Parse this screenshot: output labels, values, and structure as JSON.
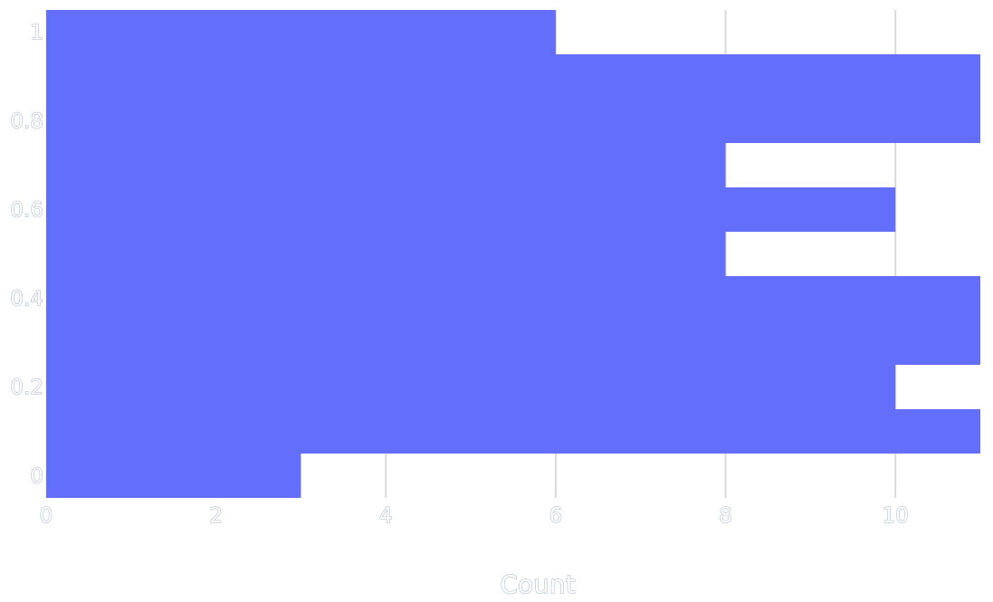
{
  "chart_data": {
    "type": "bar",
    "orientation": "horizontal",
    "title": "",
    "xlabel": "Count",
    "ylabel": "",
    "xlim": [
      0,
      11
    ],
    "ylim": [
      -0.05,
      1.05
    ],
    "grid": "vertical",
    "bar_color": "#636efa",
    "bin_width": 0.1,
    "bins": [
      {
        "y": 0.0,
        "count": 3
      },
      {
        "y": 0.1,
        "count": 11
      },
      {
        "y": 0.2,
        "count": 10
      },
      {
        "y": 0.3,
        "count": 11
      },
      {
        "y": 0.4,
        "count": 11
      },
      {
        "y": 0.5,
        "count": 8
      },
      {
        "y": 0.6,
        "count": 10
      },
      {
        "y": 0.7,
        "count": 8
      },
      {
        "y": 0.8,
        "count": 11
      },
      {
        "y": 0.9,
        "count": 11
      },
      {
        "y": 1.0,
        "count": 6
      }
    ],
    "x_ticks": [
      {
        "value": 0,
        "label": "0"
      },
      {
        "value": 2,
        "label": "2"
      },
      {
        "value": 4,
        "label": "4"
      },
      {
        "value": 6,
        "label": "6"
      },
      {
        "value": 8,
        "label": "8"
      },
      {
        "value": 10,
        "label": "10"
      }
    ],
    "y_ticks": [
      {
        "value": 0,
        "label": "0"
      },
      {
        "value": 0.2,
        "label": "0.2"
      },
      {
        "value": 0.4,
        "label": "0.4"
      },
      {
        "value": 0.6,
        "label": "0.6"
      },
      {
        "value": 0.8,
        "label": "0.8"
      },
      {
        "value": 1,
        "label": "1"
      }
    ]
  }
}
